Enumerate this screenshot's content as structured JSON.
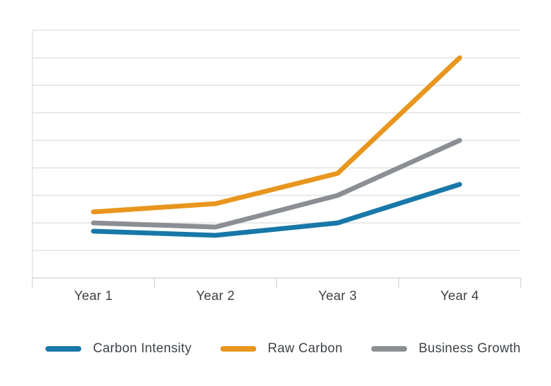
{
  "chart_data": {
    "type": "line",
    "categories": [
      "Year 1",
      "Year 2",
      "Year 3",
      "Year 4"
    ],
    "series": [
      {
        "name": "Carbon Intensity",
        "color": "#1878A8",
        "values": [
          1.7,
          1.55,
          2.0,
          3.4
        ]
      },
      {
        "name": "Raw Carbon",
        "color": "#E8961E",
        "values": [
          2.4,
          2.7,
          3.8,
          8.0
        ]
      },
      {
        "name": "Business Growth",
        "color": "#8B8E92",
        "values": [
          2.0,
          1.85,
          3.0,
          5.0
        ]
      }
    ],
    "ylim": [
      0,
      9
    ],
    "grid_step": 1,
    "grid_on": true,
    "y_tick_labels_shown": false,
    "legend_position": "bottom",
    "line_width": 7,
    "grid_color": "#E2E2E4",
    "axis_color": "#D8D8DA",
    "label_color": "#3F4347"
  }
}
